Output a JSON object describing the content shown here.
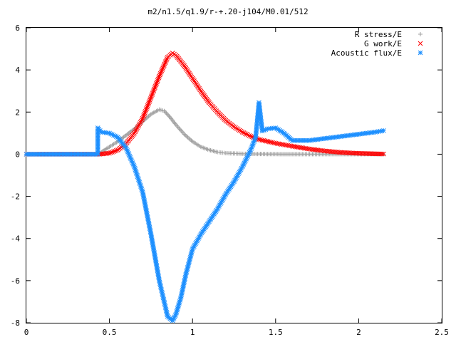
{
  "chart_data": {
    "type": "scatter",
    "title": "m2/n1.5/q1.9/r-+.20-j104/M0.01/512",
    "xlabel": "",
    "ylabel": "",
    "xlim": [
      0,
      2.5
    ],
    "ylim": [
      -8,
      6
    ],
    "xticks": [
      "0",
      "0.5",
      "1",
      "1.5",
      "2",
      "2.5"
    ],
    "yticks": [
      "-8",
      "-6",
      "-4",
      "-2",
      "0",
      "2",
      "4",
      "6"
    ],
    "legend_position": "top-right",
    "grid": false,
    "series": [
      {
        "name": "R stress/E",
        "marker": "+",
        "color": "#a0a0a0",
        "points": [
          [
            0,
            0
          ],
          [
            0.1,
            0
          ],
          [
            0.2,
            0
          ],
          [
            0.3,
            0
          ],
          [
            0.4,
            0
          ],
          [
            0.44,
            0
          ],
          [
            0.46,
            0.15
          ],
          [
            0.5,
            0.35
          ],
          [
            0.55,
            0.6
          ],
          [
            0.6,
            0.9
          ],
          [
            0.65,
            1.2
          ],
          [
            0.7,
            1.55
          ],
          [
            0.75,
            1.9
          ],
          [
            0.8,
            2.12
          ],
          [
            0.83,
            2.05
          ],
          [
            0.86,
            1.8
          ],
          [
            0.9,
            1.4
          ],
          [
            0.95,
            0.95
          ],
          [
            1.0,
            0.6
          ],
          [
            1.05,
            0.35
          ],
          [
            1.1,
            0.2
          ],
          [
            1.15,
            0.1
          ],
          [
            1.2,
            0.05
          ],
          [
            1.3,
            0.02
          ],
          [
            1.4,
            0.01
          ],
          [
            1.6,
            0.0
          ],
          [
            1.8,
            0.0
          ],
          [
            2.0,
            0.0
          ],
          [
            2.15,
            0.0
          ]
        ]
      },
      {
        "name": "G work/E",
        "marker": "x",
        "color": "#ff0000",
        "points": [
          [
            0,
            0
          ],
          [
            0.3,
            0
          ],
          [
            0.44,
            0
          ],
          [
            0.5,
            0.05
          ],
          [
            0.55,
            0.2
          ],
          [
            0.6,
            0.5
          ],
          [
            0.65,
            1.0
          ],
          [
            0.7,
            1.7
          ],
          [
            0.75,
            2.7
          ],
          [
            0.8,
            3.7
          ],
          [
            0.85,
            4.6
          ],
          [
            0.88,
            4.8
          ],
          [
            0.9,
            4.7
          ],
          [
            0.95,
            4.2
          ],
          [
            1.0,
            3.6
          ],
          [
            1.05,
            3.0
          ],
          [
            1.1,
            2.45
          ],
          [
            1.15,
            2.0
          ],
          [
            1.2,
            1.6
          ],
          [
            1.25,
            1.3
          ],
          [
            1.3,
            1.05
          ],
          [
            1.35,
            0.85
          ],
          [
            1.4,
            0.7
          ],
          [
            1.5,
            0.52
          ],
          [
            1.6,
            0.38
          ],
          [
            1.7,
            0.25
          ],
          [
            1.8,
            0.15
          ],
          [
            1.9,
            0.08
          ],
          [
            2.0,
            0.04
          ],
          [
            2.15,
            0.01
          ]
        ]
      },
      {
        "name": "Acoustic flux/E",
        "marker": "*",
        "color": "#1e90ff",
        "points": [
          [
            0,
            0
          ],
          [
            0.2,
            0
          ],
          [
            0.43,
            0
          ],
          [
            0.43,
            1.25
          ],
          [
            0.45,
            1.05
          ],
          [
            0.5,
            1.0
          ],
          [
            0.55,
            0.8
          ],
          [
            0.6,
            0.3
          ],
          [
            0.65,
            -0.6
          ],
          [
            0.7,
            -1.8
          ],
          [
            0.75,
            -3.8
          ],
          [
            0.8,
            -6.0
          ],
          [
            0.85,
            -7.7
          ],
          [
            0.88,
            -7.9
          ],
          [
            0.9,
            -7.6
          ],
          [
            0.93,
            -6.8
          ],
          [
            0.96,
            -5.7
          ],
          [
            1.0,
            -4.5
          ],
          [
            1.05,
            -3.8
          ],
          [
            1.1,
            -3.2
          ],
          [
            1.15,
            -2.6
          ],
          [
            1.2,
            -1.9
          ],
          [
            1.25,
            -1.3
          ],
          [
            1.3,
            -0.6
          ],
          [
            1.35,
            0.2
          ],
          [
            1.38,
            0.8
          ],
          [
            1.4,
            2.45
          ],
          [
            1.42,
            1.1
          ],
          [
            1.45,
            1.2
          ],
          [
            1.5,
            1.25
          ],
          [
            1.55,
            1.0
          ],
          [
            1.6,
            0.65
          ],
          [
            1.7,
            0.65
          ],
          [
            1.8,
            0.75
          ],
          [
            1.9,
            0.85
          ],
          [
            2.0,
            0.95
          ],
          [
            2.1,
            1.05
          ],
          [
            2.15,
            1.12
          ]
        ]
      }
    ]
  }
}
